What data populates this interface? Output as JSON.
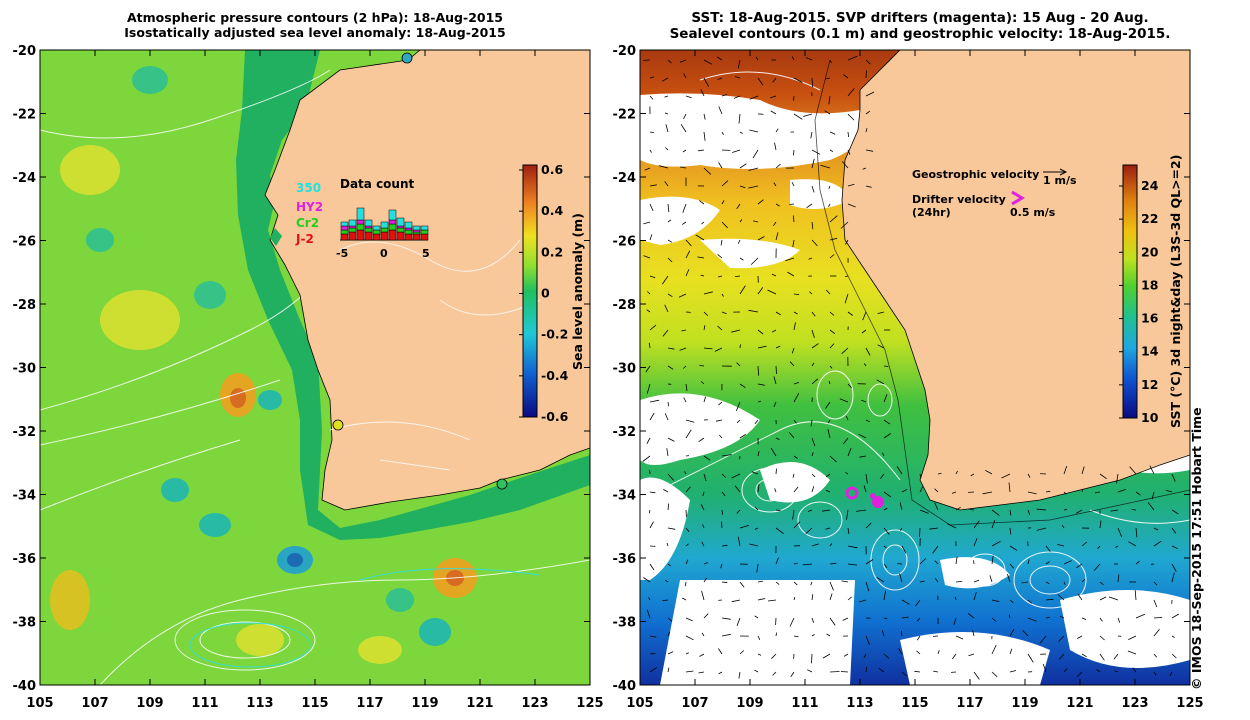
{
  "left_panel": {
    "title_line1": "Atmospheric pressure contours (2 hPa): 18-Aug-2015",
    "title_line2": "Isostatically adjusted sea level anomaly: 18-Aug-2015",
    "colorbar": {
      "label": "Sea level anomaly (m)",
      "ticks": [
        "0.6",
        "0.4",
        "0.2",
        "0",
        "-0.2",
        "-0.4",
        "-0.6"
      ],
      "range": [
        -0.6,
        0.6
      ]
    },
    "data_count": {
      "title": "Data count",
      "legend": [
        {
          "label": "350",
          "color": "#22e0e0"
        },
        {
          "label": "HY2",
          "color": "#e020e0"
        },
        {
          "label": "Cr2",
          "color": "#20d020"
        },
        {
          "label": "J-2",
          "color": "#e01010"
        }
      ],
      "x_ticks": [
        "-5",
        "0",
        "5"
      ]
    }
  },
  "right_panel": {
    "title_line1": "SST: 18-Aug-2015. SVP drifters (magenta): 15 Aug - 20 Aug.",
    "title_line2": "Sealevel contours (0.1 m) and geostrophic velocity: 18-Aug-2015.",
    "colorbar": {
      "label": "SST (°C) 3d night&day (L3S-3d QL>=2)",
      "ticks": [
        "24",
        "22",
        "20",
        "18",
        "16",
        "14",
        "12",
        "10"
      ],
      "range": [
        10,
        25
      ]
    },
    "legend": {
      "geostrophic_label": "Geostrophic velocity",
      "geostrophic_scale": "1 m/s",
      "drifter_label": "Drifter velocity",
      "drifter_sub": "(24hr)",
      "drifter_scale": "0.5 m/s"
    },
    "credit": "© IMOS 18-Sep-2015 17:51 Hobart Time"
  },
  "axes": {
    "y_ticks": [
      "-20",
      "-22",
      "-24",
      "-26",
      "-28",
      "-30",
      "-32",
      "-34",
      "-36",
      "-38",
      "-40"
    ],
    "x_ticks": [
      "105",
      "107",
      "109",
      "111",
      "113",
      "115",
      "117",
      "119",
      "121",
      "123",
      "125"
    ]
  },
  "colors": {
    "land": "#f8c89a",
    "ocean_ssa": "#7cd63c",
    "colorbar_outline": "#000000",
    "drifter": "#e020e0"
  }
}
